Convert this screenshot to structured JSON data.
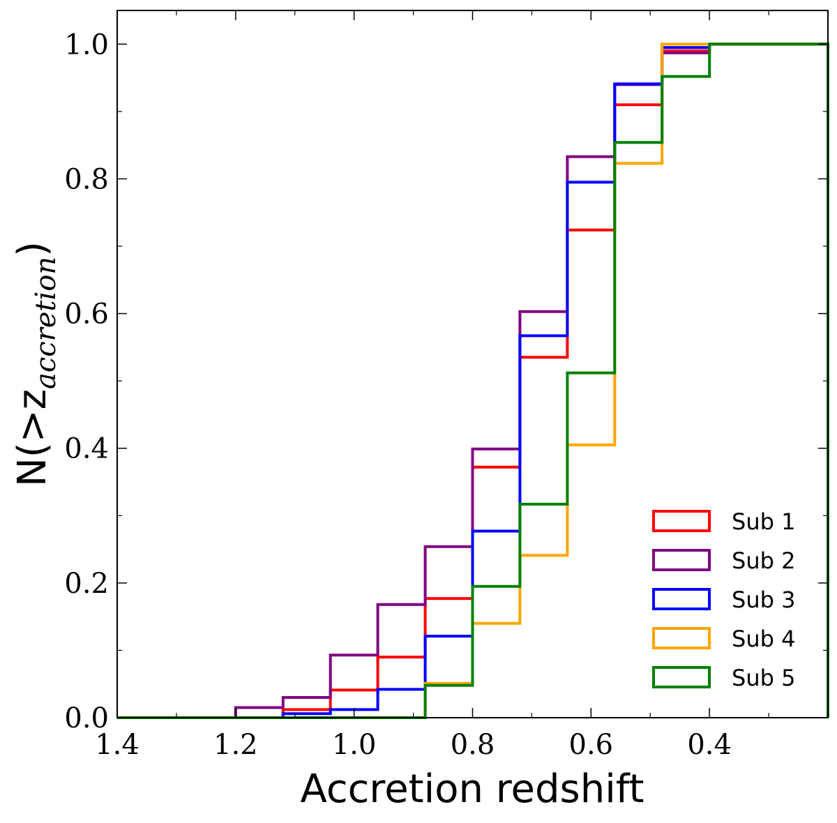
{
  "chart_data": {
    "type": "step",
    "xlabel": "Accretion redshift",
    "ylabel": {
      "main": "N(>z",
      "sub": "accretion",
      "close": ")"
    },
    "xlim": [
      1.4,
      0.2
    ],
    "ylim": [
      0.0,
      1.05
    ],
    "x_reversed": true,
    "x_ticks": [
      1.4,
      1.2,
      1.0,
      0.8,
      0.6,
      0.4
    ],
    "x_tick_labels": [
      "1.4",
      "1.2",
      "1.0",
      "0.8",
      "0.6",
      "0.4"
    ],
    "y_ticks": [
      0.0,
      0.2,
      0.4,
      0.6,
      0.8,
      1.0
    ],
    "y_tick_labels": [
      "0.0",
      "0.2",
      "0.4",
      "0.6",
      "0.8",
      "1.0"
    ],
    "grid": false,
    "legend_position": "bottom-right",
    "bin_edges": [
      1.4,
      1.36,
      1.28,
      1.2,
      1.12,
      1.04,
      0.96,
      0.88,
      0.8,
      0.72,
      0.64,
      0.56,
      0.48,
      0.4,
      0.2
    ],
    "series": [
      {
        "name": "Sub 1",
        "color": "#ff0000",
        "values": [
          0.0,
          0.0,
          0.0,
          0.0,
          0.012,
          0.041,
          0.09,
          0.177,
          0.372,
          0.535,
          0.724,
          0.91,
          0.99,
          1.0
        ]
      },
      {
        "name": "Sub 2",
        "color": "#800080",
        "values": [
          0.0,
          0.0,
          0.0,
          0.015,
          0.03,
          0.093,
          0.168,
          0.254,
          0.399,
          0.603,
          0.833,
          0.94,
          0.987,
          1.0
        ]
      },
      {
        "name": "Sub 3",
        "color": "#0000ff",
        "values": [
          0.0,
          0.0,
          0.0,
          0.0,
          0.006,
          0.012,
          0.042,
          0.121,
          0.277,
          0.567,
          0.795,
          0.941,
          0.995,
          1.0
        ]
      },
      {
        "name": "Sub 4",
        "color": "#ffa500",
        "values": [
          0.0,
          0.0,
          0.0,
          0.0,
          0.0,
          0.0,
          0.0,
          0.051,
          0.14,
          0.241,
          0.405,
          0.823,
          1.0,
          1.0
        ]
      },
      {
        "name": "Sub 5",
        "color": "#008000",
        "values": [
          0.0,
          0.0,
          0.0,
          0.0,
          0.0,
          0.0,
          0.0,
          0.048,
          0.195,
          0.317,
          0.512,
          0.854,
          0.952,
          1.0
        ]
      }
    ]
  }
}
